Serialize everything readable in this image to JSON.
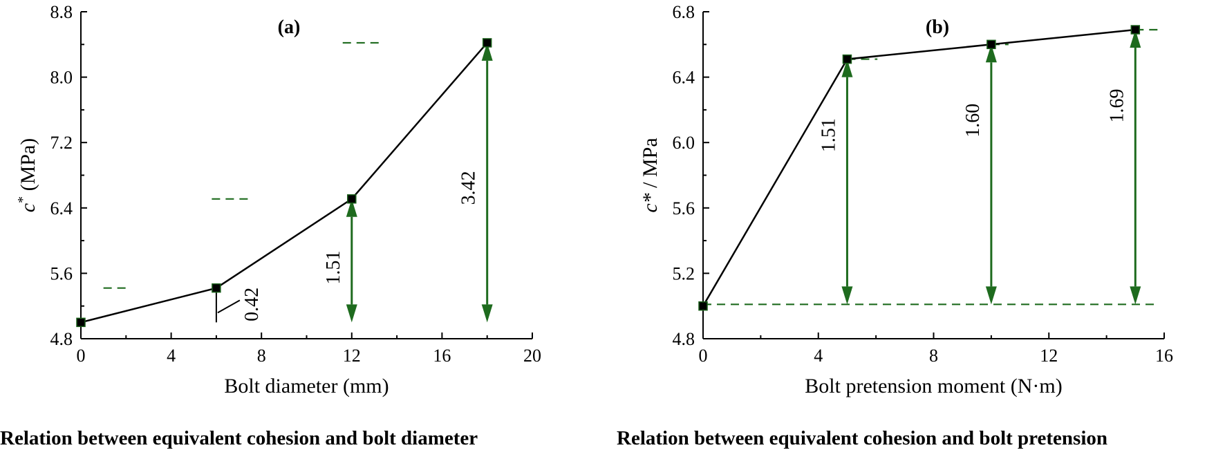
{
  "chart_data": [
    {
      "panel": "(a)",
      "type": "line",
      "xlabel": "Bolt diameter (mm)",
      "ylabel_main": "c",
      "ylabel_sup": "*",
      "ylabel_unit": " (MPa)",
      "caption": "Relation between equivalent cohesion and bolt diameter",
      "xlim": [
        0,
        20
      ],
      "ylim": [
        4.8,
        8.8
      ],
      "xticks": [
        0,
        4,
        8,
        12,
        16,
        20
      ],
      "yticks": [
        4.8,
        5.6,
        6.4,
        7.2,
        8.0,
        8.8
      ],
      "ytick_labels": [
        "4.8",
        "5.6",
        "6.4",
        "7.2",
        "8.0",
        "8.8"
      ],
      "x": [
        0,
        6,
        12,
        18
      ],
      "y": [
        5.0,
        5.42,
        6.51,
        8.42
      ],
      "baseline": 5.0,
      "annotations": [
        {
          "x": 6,
          "from": 5.0,
          "to": 5.42,
          "label": "0.42",
          "style": "leader"
        },
        {
          "x": 12,
          "from": 5.0,
          "to": 6.51,
          "label": "1.51",
          "style": "arrow"
        },
        {
          "x": 18,
          "from": 5.0,
          "to": 8.42,
          "label": "3.42",
          "style": "arrow"
        }
      ]
    },
    {
      "panel": "(b)",
      "type": "line",
      "xlabel": "Bolt pretension moment (N·m)",
      "ylabel_main": "c*",
      "ylabel_sup": "",
      "ylabel_unit": " / MPa",
      "caption": "Relation between equivalent cohesion and bolt pretension",
      "xlim": [
        0,
        16
      ],
      "ylim": [
        4.8,
        6.8
      ],
      "xticks": [
        0,
        4,
        8,
        12,
        16
      ],
      "yticks": [
        4.8,
        5.2,
        5.6,
        6.0,
        6.4,
        6.8
      ],
      "ytick_labels": [
        "4.8",
        "5.2",
        "5.6",
        "6.0",
        "6.4",
        "6.8"
      ],
      "x": [
        0,
        5,
        10,
        15
      ],
      "y": [
        5.0,
        6.51,
        6.6,
        6.69
      ],
      "baseline": 5.01,
      "annotations": [
        {
          "x": 5,
          "from": 5.01,
          "to": 6.51,
          "label": "1.51",
          "style": "arrow"
        },
        {
          "x": 10,
          "from": 5.01,
          "to": 6.6,
          "label": "1.60",
          "style": "arrow"
        },
        {
          "x": 15,
          "from": 5.01,
          "to": 6.69,
          "label": "1.69",
          "style": "arrow"
        }
      ]
    }
  ]
}
